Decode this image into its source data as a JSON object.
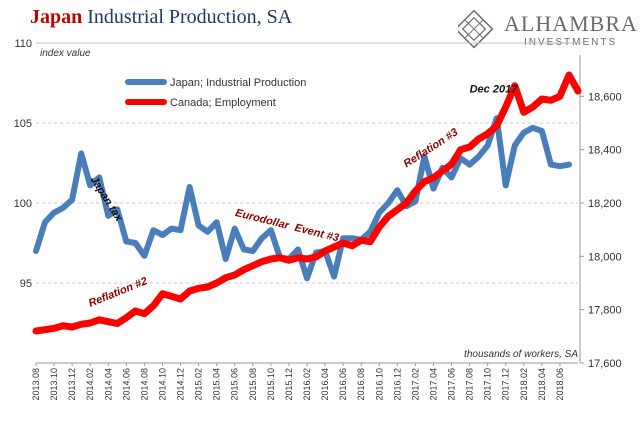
{
  "header": {
    "title_part1": "Japan",
    "title_part2": "Industrial Production, SA",
    "logo_text": "ALHAMBRA",
    "logo_sub": "INVESTMENTS"
  },
  "colors": {
    "japan": "#4a7ebb",
    "canada": "#ff0000",
    "annotation": "#8b0000",
    "title_red": "#c00000",
    "title_blue": "#1f3864"
  },
  "chart_data": {
    "type": "line",
    "left_axis_note": "index value",
    "right_axis_note": "thousands of workers, SA",
    "ylim_left": [
      90,
      110
    ],
    "yticks_left": [
      "110",
      "105",
      "100",
      "95"
    ],
    "ylim_right": [
      17600,
      18800
    ],
    "yticks_right": [
      "18,600",
      "18,400",
      "18,200",
      "18,000",
      "17,800",
      "17,600"
    ],
    "x": [
      "2013.08",
      "2013.09",
      "2013.10",
      "2013.11",
      "2013.12",
      "2014.01",
      "2014.02",
      "2014.03",
      "2014.04",
      "2014.05",
      "2014.06",
      "2014.07",
      "2014.08",
      "2014.09",
      "2014.10",
      "2014.11",
      "2014.12",
      "2015.01",
      "2015.02",
      "2015.03",
      "2015.04",
      "2015.05",
      "2015.06",
      "2015.07",
      "2015.08",
      "2015.09",
      "2015.10",
      "2015.11",
      "2015.12",
      "2016.01",
      "2016.02",
      "2016.03",
      "2016.04",
      "2016.05",
      "2016.06",
      "2016.07",
      "2016.08",
      "2016.09",
      "2016.10",
      "2016.11",
      "2016.12",
      "2017.01",
      "2017.02",
      "2017.03",
      "2017.04",
      "2017.05",
      "2017.06",
      "2017.07",
      "2017.08",
      "2017.09",
      "2017.10",
      "2017.11",
      "2017.12",
      "2018.01",
      "2018.02",
      "2018.03",
      "2018.04",
      "2018.05",
      "2018.06",
      "2018.07",
      "2018.08"
    ],
    "xtick_labels": [
      "2013.08",
      "2013.10",
      "2013.12",
      "2014.02",
      "2014.04",
      "2014.06",
      "2014.08",
      "2014.10",
      "2014.12",
      "2015.02",
      "2015.04",
      "2015.06",
      "2015.08",
      "2015.10",
      "2015.12",
      "2016.02",
      "2016.04",
      "2016.06",
      "2016.08",
      "2016.10",
      "2016.12",
      "2017.02",
      "2017.04",
      "2017.06",
      "2017.08",
      "2017.10",
      "2017.12",
      "2018.02",
      "2018.04",
      "2018.06"
    ],
    "series": [
      {
        "name": "Japan; Industrial Production",
        "axis": "left",
        "values": [
          97.0,
          98.8,
          99.4,
          99.7,
          100.2,
          103.1,
          101.1,
          101.6,
          99.2,
          99.6,
          97.6,
          97.5,
          96.7,
          98.3,
          98.0,
          98.4,
          98.3,
          101.0,
          98.6,
          98.2,
          98.8,
          96.5,
          98.4,
          97.1,
          97.0,
          97.8,
          98.3,
          96.6,
          96.5,
          97.1,
          95.3,
          96.9,
          97.0,
          95.4,
          97.8,
          97.8,
          97.7,
          98.2,
          99.4,
          100.0,
          100.8,
          99.8,
          100.1,
          102.9,
          100.9,
          102.2,
          101.6,
          102.8,
          102.4,
          102.9,
          103.6,
          105.3,
          101.1,
          103.6,
          104.4,
          104.7,
          104.5,
          102.4,
          102.3,
          102.4,
          null
        ]
      },
      {
        "name": "Canada; Employment",
        "axis": "right",
        "values": [
          17720,
          17725,
          17730,
          17740,
          17735,
          17745,
          17750,
          17762,
          17755,
          17748,
          17770,
          17795,
          17785,
          17815,
          17860,
          17850,
          17840,
          17870,
          17880,
          17885,
          17900,
          17920,
          17930,
          17950,
          17965,
          17980,
          17990,
          17995,
          17985,
          17995,
          17990,
          17998,
          18020,
          18035,
          18050,
          18040,
          18060,
          18055,
          18110,
          18150,
          18175,
          18200,
          18245,
          18280,
          18295,
          18320,
          18345,
          18400,
          18410,
          18440,
          18460,
          18490,
          18560,
          18640,
          18540,
          18560,
          18590,
          18585,
          18600,
          18680,
          18620
        ]
      }
    ],
    "annotations": [
      {
        "text": "Japan tax",
        "x": "2014.02",
        "y": 101.5
      },
      {
        "text": "Reflation #2",
        "x": "2014.02",
        "y": 93.5
      },
      {
        "text": "Eurodollar  Event #3",
        "x": "2015.06",
        "y": 99.2
      },
      {
        "text": "Reflation #3",
        "x": "2017.01",
        "y": 102.2
      },
      {
        "text": "Dec 2017",
        "x": "2017.08",
        "y": 106.9
      }
    ]
  }
}
